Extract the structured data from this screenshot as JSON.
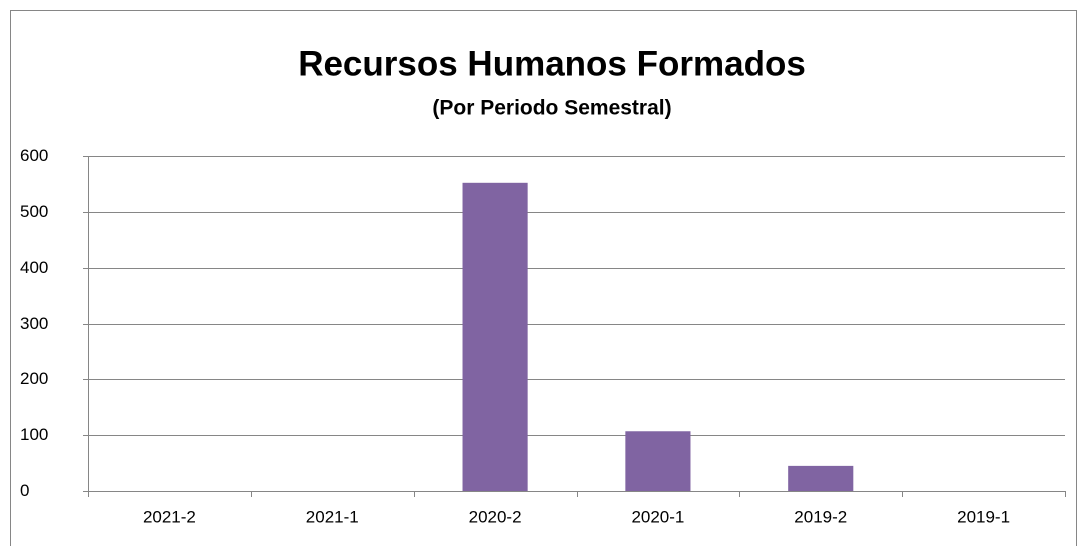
{
  "chart_data": {
    "type": "bar",
    "title": "Recursos Humanos Formados",
    "subtitle": "(Por Periodo Semestral)",
    "categories": [
      "2021-2",
      "2021-1",
      "2020-2",
      "2020-1",
      "2019-2",
      "2019-1"
    ],
    "values": [
      0,
      0,
      552,
      107,
      45,
      0
    ],
    "color": "#8064a2",
    "ylim": [
      0,
      600
    ],
    "yticks": [
      0,
      100,
      200,
      300,
      400,
      500,
      600
    ],
    "grid": true
  }
}
